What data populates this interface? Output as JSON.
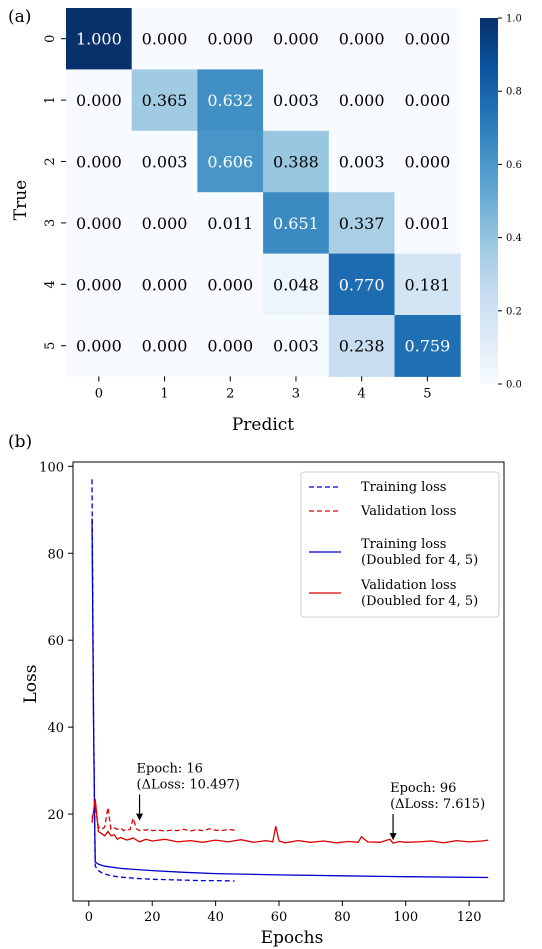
{
  "chart_data": [
    {
      "type": "heatmap",
      "panel_label": "(a)",
      "xlabel": "Predict",
      "ylabel": "True",
      "x_categories": [
        "0",
        "1",
        "2",
        "3",
        "4",
        "5"
      ],
      "y_categories": [
        "0",
        "1",
        "2",
        "3",
        "4",
        "5"
      ],
      "values": [
        [
          "1.000",
          "0.000",
          "0.000",
          "0.000",
          "0.000",
          "0.000"
        ],
        [
          "0.000",
          "0.365",
          "0.632",
          "0.003",
          "0.000",
          "0.000"
        ],
        [
          "0.000",
          "0.003",
          "0.606",
          "0.388",
          "0.003",
          "0.000"
        ],
        [
          "0.000",
          "0.000",
          "0.011",
          "0.651",
          "0.337",
          "0.001"
        ],
        [
          "0.000",
          "0.000",
          "0.000",
          "0.048",
          "0.770",
          "0.181"
        ],
        [
          "0.000",
          "0.000",
          "0.000",
          "0.003",
          "0.238",
          "0.759"
        ]
      ],
      "colorbar": {
        "range": [
          0,
          1
        ],
        "ticks": [
          "0.0",
          "0.2",
          "0.4",
          "0.6",
          "0.8",
          "1.0"
        ]
      },
      "colormap": [
        "#f7fbff",
        "#deebf7",
        "#c6dbef",
        "#9ecae1",
        "#6baed6",
        "#4292c6",
        "#2171b5",
        "#08519c",
        "#08306b"
      ]
    },
    {
      "type": "line",
      "panel_label": "(b)",
      "xlabel": "Epochs",
      "ylabel": "Loss",
      "xlim": [
        -5,
        131
      ],
      "ylim": [
        0,
        101
      ],
      "x_ticks": [
        "0",
        "20",
        "40",
        "60",
        "80",
        "100",
        "120"
      ],
      "y_ticks": [
        "20",
        "40",
        "60",
        "80",
        "100"
      ],
      "legend_position": "top-right",
      "series": [
        {
          "name": "Training loss",
          "color": "#0000cc",
          "style": "dashed",
          "x": [
            1,
            1.5,
            2,
            3,
            4,
            6,
            8,
            10,
            15,
            20,
            25,
            30,
            35,
            40,
            46
          ],
          "y": [
            97,
            40,
            8,
            7,
            6.5,
            6,
            5.7,
            5.5,
            5.2,
            5,
            4.9,
            4.8,
            4.7,
            4.7,
            4.6
          ]
        },
        {
          "name": "Validation loss",
          "color": "#dd0000",
          "style": "dashed",
          "x": [
            1,
            2,
            3,
            4,
            5,
            6,
            7,
            8,
            9,
            10,
            11,
            12,
            13,
            14,
            15,
            16,
            17,
            18,
            19,
            20,
            22,
            24,
            26,
            28,
            30,
            32,
            34,
            36,
            38,
            40,
            42,
            44,
            46
          ],
          "y": [
            19,
            22,
            17,
            16.5,
            17,
            21.5,
            16.5,
            16.8,
            16.5,
            16.8,
            16.2,
            16.5,
            16.4,
            19,
            16.6,
            16.2,
            16.4,
            16.3,
            16.5,
            16.2,
            16.3,
            16.1,
            16.3,
            16.2,
            16.5,
            16.1,
            16.4,
            16.2,
            16.6,
            16.3,
            16.2,
            16.5,
            16.3
          ]
        },
        {
          "name": "Training loss\n(Doubled for 4, 5)",
          "color": "#0000cc",
          "style": "solid",
          "x": [
            1,
            1.5,
            2,
            3,
            5,
            10,
            20,
            30,
            40,
            60,
            80,
            100,
            126
          ],
          "y": [
            88,
            40,
            9,
            8.5,
            8,
            7.5,
            7,
            6.6,
            6.3,
            6,
            5.8,
            5.6,
            5.4
          ]
        },
        {
          "name": "Validation loss\n(Doubled for 4, 5)",
          "color": "#dd0000",
          "style": "solid",
          "x": [
            1,
            2,
            3,
            4,
            5,
            6,
            7,
            8,
            9,
            10,
            12,
            14,
            16,
            18,
            20,
            24,
            28,
            32,
            36,
            40,
            44,
            48,
            52,
            56,
            58,
            59,
            60,
            62,
            66,
            70,
            74,
            78,
            82,
            85,
            86,
            88,
            92,
            95,
            96,
            98,
            100,
            104,
            108,
            112,
            116,
            120,
            124,
            126
          ],
          "y": [
            18,
            23.5,
            16,
            15.5,
            15,
            16,
            15,
            15.2,
            14.2,
            14.6,
            14,
            14.5,
            13.6,
            14.2,
            13.8,
            14.2,
            13.6,
            13.9,
            13.5,
            14,
            13.6,
            14.1,
            13.5,
            13.9,
            13.6,
            17.2,
            13.8,
            13.4,
            13.9,
            13.5,
            13.8,
            13.4,
            13.7,
            13.5,
            14.8,
            13.6,
            13.5,
            14.2,
            13.3,
            13.7,
            13.5,
            13.6,
            13.8,
            13.4,
            13.9,
            13.6,
            13.8,
            14
          ]
        }
      ],
      "annotations": [
        {
          "line1": "Epoch: 16",
          "line2": "(ΔLoss: 10.497)",
          "x": 16,
          "y_tip": 18.5,
          "y_base": 24.5
        },
        {
          "line1": "Epoch: 96",
          "line2": "(ΔLoss: 7.615)",
          "x": 96,
          "y_tip": 14,
          "y_base": 20
        }
      ]
    }
  ]
}
